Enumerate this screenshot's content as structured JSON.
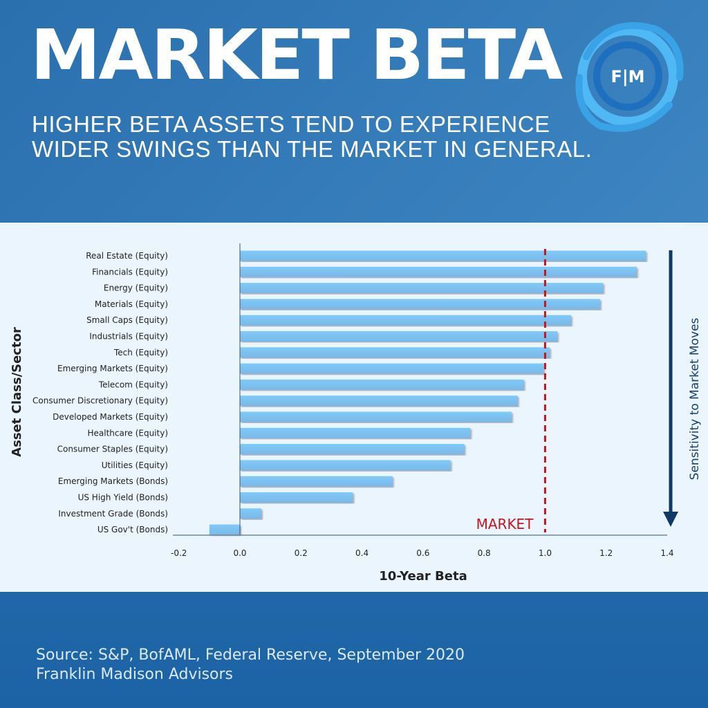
{
  "header": {
    "title": "MARKET BETA",
    "subtitle_line1": "HIGHER BETA ASSETS TEND TO EXPERIENCE",
    "subtitle_line2": "WIDER SWINGS THAN THE MARKET IN GENERAL.",
    "logo_text": "F|M"
  },
  "footer": {
    "source": "Source: S&P, BofAML, Federal Reserve, September 2020",
    "firm": "Franklin Madison Advisors"
  },
  "colors": {
    "bar": "#7cc0f0",
    "market_line": "#c8141e",
    "arrow": "#0d3a66"
  },
  "chart_data": {
    "type": "bar",
    "orientation": "horizontal",
    "categories": [
      "Real Estate (Equity)",
      "Financials (Equity)",
      "Energy (Equity)",
      "Materials (Equity)",
      "Small Caps (Equity)",
      "Industrials (Equity)",
      "Tech (Equity)",
      "Emerging Markets (Equity)",
      "Telecom (Equity)",
      "Consumer Discretionary (Equity)",
      "Developed Markets (Equity)",
      "Healthcare (Equity)",
      "Consumer Staples (Equity)",
      "Utilities (Equity)",
      "Emerging Markets (Bonds)",
      "US High Yield (Bonds)",
      "Investment Grade (Bonds)",
      "US Gov't (Bonds)"
    ],
    "values": [
      1.33,
      1.3,
      1.19,
      1.18,
      1.085,
      1.04,
      1.015,
      0.995,
      0.93,
      0.91,
      0.89,
      0.755,
      0.735,
      0.69,
      0.5,
      0.37,
      0.07,
      -0.1
    ],
    "xlabel": "10-Year Beta",
    "ylabel": "Asset Class/Sector",
    "xlim": [
      -0.2,
      1.4
    ],
    "xticks": [
      "-0.2",
      "0.0",
      "0.2",
      "0.4",
      "0.6",
      "0.8",
      "1.0",
      "1.2",
      "1.4"
    ],
    "reference_line": {
      "value": 1.0,
      "label": "MARKET"
    },
    "arrow_label": "Sensitivity to Market Moves"
  }
}
